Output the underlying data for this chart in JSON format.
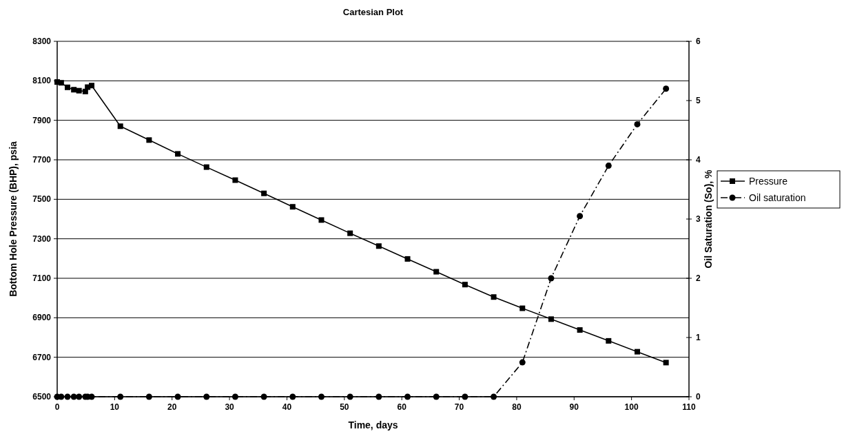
{
  "chart_data": {
    "type": "line",
    "title": "Cartesian Plot",
    "xlabel": "Time, days",
    "ylabel": "Bottom Hole Pressure (BHP), psia",
    "y2label": "Oil Saturation (So), %",
    "xlim": [
      0,
      110
    ],
    "xticks": [
      0,
      10,
      20,
      30,
      40,
      50,
      60,
      70,
      80,
      90,
      100,
      110
    ],
    "ylim": [
      6500,
      8300
    ],
    "yticks": [
      6500,
      6700,
      6900,
      7100,
      7300,
      7500,
      7700,
      7900,
      8100,
      8300
    ],
    "y2lim": [
      0,
      6
    ],
    "y2ticks": [
      0,
      1,
      2,
      3,
      4,
      5,
      6
    ],
    "grid": "y",
    "legend": "right",
    "series": [
      {
        "name": "Pressure",
        "color": "#000000",
        "marker": "square",
        "line_style": "solid",
        "x": [
          0,
          0.7,
          1.8,
          2.9,
          3.8,
          4.9,
          5.3,
          6,
          11,
          16,
          21,
          26,
          31,
          36,
          41,
          46,
          51,
          56,
          61,
          66,
          71,
          76,
          81,
          86,
          91,
          96,
          101,
          106
        ],
        "values": [
          8094,
          8090,
          8067,
          8055,
          8050,
          8046,
          8068,
          8076,
          7870,
          7800,
          7730,
          7663,
          7597,
          7530,
          7462,
          7395,
          7328,
          7263,
          7198,
          7133,
          7068,
          7005,
          6948,
          6893,
          6838,
          6783,
          6728,
          6673
        ]
      },
      {
        "name": "Oil saturation",
        "color": "#000000",
        "marker": "circle",
        "line_style": "dashed",
        "axis": "y2",
        "x": [
          0,
          0.7,
          1.8,
          2.9,
          3.8,
          4.9,
          5.3,
          6,
          11,
          16,
          21,
          26,
          31,
          36,
          41,
          46,
          51,
          56,
          61,
          66,
          71,
          76,
          81,
          86,
          91,
          96,
          101,
          106
        ],
        "values": [
          0,
          0,
          0,
          0,
          0,
          0,
          0,
          0,
          0,
          0,
          0,
          0,
          0,
          0,
          0,
          0,
          0,
          0,
          0,
          0,
          0,
          0,
          0.58,
          2.0,
          3.05,
          3.9,
          4.6,
          5.2
        ]
      }
    ]
  }
}
